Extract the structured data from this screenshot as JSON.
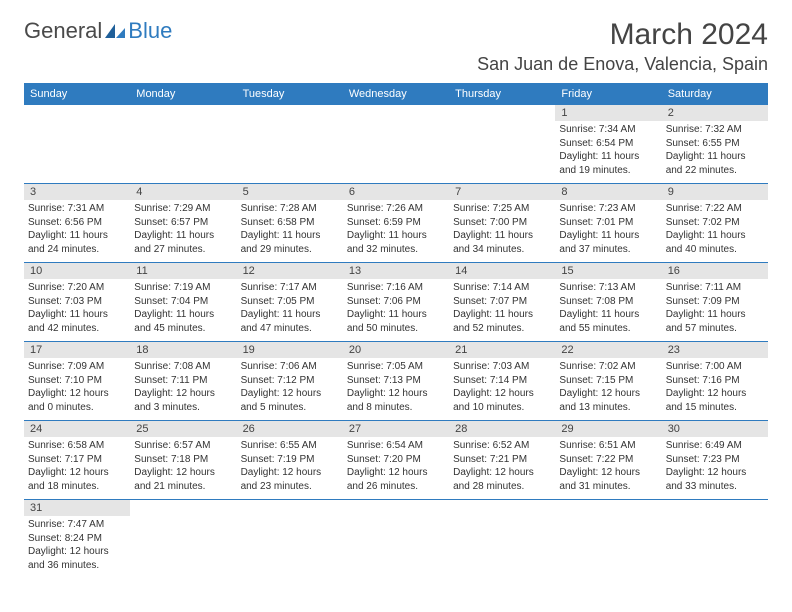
{
  "brand": {
    "part1": "General",
    "part2": "Blue"
  },
  "title": "March 2024",
  "location": "San Juan de Enova, Valencia, Spain",
  "colors": {
    "accent": "#2f7bbf",
    "header_bg": "#2f7bbf",
    "daynum_bg": "#e5e5e5",
    "text": "#333333"
  },
  "day_headers": [
    "Sunday",
    "Monday",
    "Tuesday",
    "Wednesday",
    "Thursday",
    "Friday",
    "Saturday"
  ],
  "weeks": [
    [
      null,
      null,
      null,
      null,
      null,
      {
        "n": "1",
        "sunrise": "Sunrise: 7:34 AM",
        "sunset": "Sunset: 6:54 PM",
        "day1": "Daylight: 11 hours",
        "day2": "and 19 minutes."
      },
      {
        "n": "2",
        "sunrise": "Sunrise: 7:32 AM",
        "sunset": "Sunset: 6:55 PM",
        "day1": "Daylight: 11 hours",
        "day2": "and 22 minutes."
      }
    ],
    [
      {
        "n": "3",
        "sunrise": "Sunrise: 7:31 AM",
        "sunset": "Sunset: 6:56 PM",
        "day1": "Daylight: 11 hours",
        "day2": "and 24 minutes."
      },
      {
        "n": "4",
        "sunrise": "Sunrise: 7:29 AM",
        "sunset": "Sunset: 6:57 PM",
        "day1": "Daylight: 11 hours",
        "day2": "and 27 minutes."
      },
      {
        "n": "5",
        "sunrise": "Sunrise: 7:28 AM",
        "sunset": "Sunset: 6:58 PM",
        "day1": "Daylight: 11 hours",
        "day2": "and 29 minutes."
      },
      {
        "n": "6",
        "sunrise": "Sunrise: 7:26 AM",
        "sunset": "Sunset: 6:59 PM",
        "day1": "Daylight: 11 hours",
        "day2": "and 32 minutes."
      },
      {
        "n": "7",
        "sunrise": "Sunrise: 7:25 AM",
        "sunset": "Sunset: 7:00 PM",
        "day1": "Daylight: 11 hours",
        "day2": "and 34 minutes."
      },
      {
        "n": "8",
        "sunrise": "Sunrise: 7:23 AM",
        "sunset": "Sunset: 7:01 PM",
        "day1": "Daylight: 11 hours",
        "day2": "and 37 minutes."
      },
      {
        "n": "9",
        "sunrise": "Sunrise: 7:22 AM",
        "sunset": "Sunset: 7:02 PM",
        "day1": "Daylight: 11 hours",
        "day2": "and 40 minutes."
      }
    ],
    [
      {
        "n": "10",
        "sunrise": "Sunrise: 7:20 AM",
        "sunset": "Sunset: 7:03 PM",
        "day1": "Daylight: 11 hours",
        "day2": "and 42 minutes."
      },
      {
        "n": "11",
        "sunrise": "Sunrise: 7:19 AM",
        "sunset": "Sunset: 7:04 PM",
        "day1": "Daylight: 11 hours",
        "day2": "and 45 minutes."
      },
      {
        "n": "12",
        "sunrise": "Sunrise: 7:17 AM",
        "sunset": "Sunset: 7:05 PM",
        "day1": "Daylight: 11 hours",
        "day2": "and 47 minutes."
      },
      {
        "n": "13",
        "sunrise": "Sunrise: 7:16 AM",
        "sunset": "Sunset: 7:06 PM",
        "day1": "Daylight: 11 hours",
        "day2": "and 50 minutes."
      },
      {
        "n": "14",
        "sunrise": "Sunrise: 7:14 AM",
        "sunset": "Sunset: 7:07 PM",
        "day1": "Daylight: 11 hours",
        "day2": "and 52 minutes."
      },
      {
        "n": "15",
        "sunrise": "Sunrise: 7:13 AM",
        "sunset": "Sunset: 7:08 PM",
        "day1": "Daylight: 11 hours",
        "day2": "and 55 minutes."
      },
      {
        "n": "16",
        "sunrise": "Sunrise: 7:11 AM",
        "sunset": "Sunset: 7:09 PM",
        "day1": "Daylight: 11 hours",
        "day2": "and 57 minutes."
      }
    ],
    [
      {
        "n": "17",
        "sunrise": "Sunrise: 7:09 AM",
        "sunset": "Sunset: 7:10 PM",
        "day1": "Daylight: 12 hours",
        "day2": "and 0 minutes."
      },
      {
        "n": "18",
        "sunrise": "Sunrise: 7:08 AM",
        "sunset": "Sunset: 7:11 PM",
        "day1": "Daylight: 12 hours",
        "day2": "and 3 minutes."
      },
      {
        "n": "19",
        "sunrise": "Sunrise: 7:06 AM",
        "sunset": "Sunset: 7:12 PM",
        "day1": "Daylight: 12 hours",
        "day2": "and 5 minutes."
      },
      {
        "n": "20",
        "sunrise": "Sunrise: 7:05 AM",
        "sunset": "Sunset: 7:13 PM",
        "day1": "Daylight: 12 hours",
        "day2": "and 8 minutes."
      },
      {
        "n": "21",
        "sunrise": "Sunrise: 7:03 AM",
        "sunset": "Sunset: 7:14 PM",
        "day1": "Daylight: 12 hours",
        "day2": "and 10 minutes."
      },
      {
        "n": "22",
        "sunrise": "Sunrise: 7:02 AM",
        "sunset": "Sunset: 7:15 PM",
        "day1": "Daylight: 12 hours",
        "day2": "and 13 minutes."
      },
      {
        "n": "23",
        "sunrise": "Sunrise: 7:00 AM",
        "sunset": "Sunset: 7:16 PM",
        "day1": "Daylight: 12 hours",
        "day2": "and 15 minutes."
      }
    ],
    [
      {
        "n": "24",
        "sunrise": "Sunrise: 6:58 AM",
        "sunset": "Sunset: 7:17 PM",
        "day1": "Daylight: 12 hours",
        "day2": "and 18 minutes."
      },
      {
        "n": "25",
        "sunrise": "Sunrise: 6:57 AM",
        "sunset": "Sunset: 7:18 PM",
        "day1": "Daylight: 12 hours",
        "day2": "and 21 minutes."
      },
      {
        "n": "26",
        "sunrise": "Sunrise: 6:55 AM",
        "sunset": "Sunset: 7:19 PM",
        "day1": "Daylight: 12 hours",
        "day2": "and 23 minutes."
      },
      {
        "n": "27",
        "sunrise": "Sunrise: 6:54 AM",
        "sunset": "Sunset: 7:20 PM",
        "day1": "Daylight: 12 hours",
        "day2": "and 26 minutes."
      },
      {
        "n": "28",
        "sunrise": "Sunrise: 6:52 AM",
        "sunset": "Sunset: 7:21 PM",
        "day1": "Daylight: 12 hours",
        "day2": "and 28 minutes."
      },
      {
        "n": "29",
        "sunrise": "Sunrise: 6:51 AM",
        "sunset": "Sunset: 7:22 PM",
        "day1": "Daylight: 12 hours",
        "day2": "and 31 minutes."
      },
      {
        "n": "30",
        "sunrise": "Sunrise: 6:49 AM",
        "sunset": "Sunset: 7:23 PM",
        "day1": "Daylight: 12 hours",
        "day2": "and 33 minutes."
      }
    ],
    [
      {
        "n": "31",
        "sunrise": "Sunrise: 7:47 AM",
        "sunset": "Sunset: 8:24 PM",
        "day1": "Daylight: 12 hours",
        "day2": "and 36 minutes."
      },
      null,
      null,
      null,
      null,
      null,
      null
    ]
  ]
}
